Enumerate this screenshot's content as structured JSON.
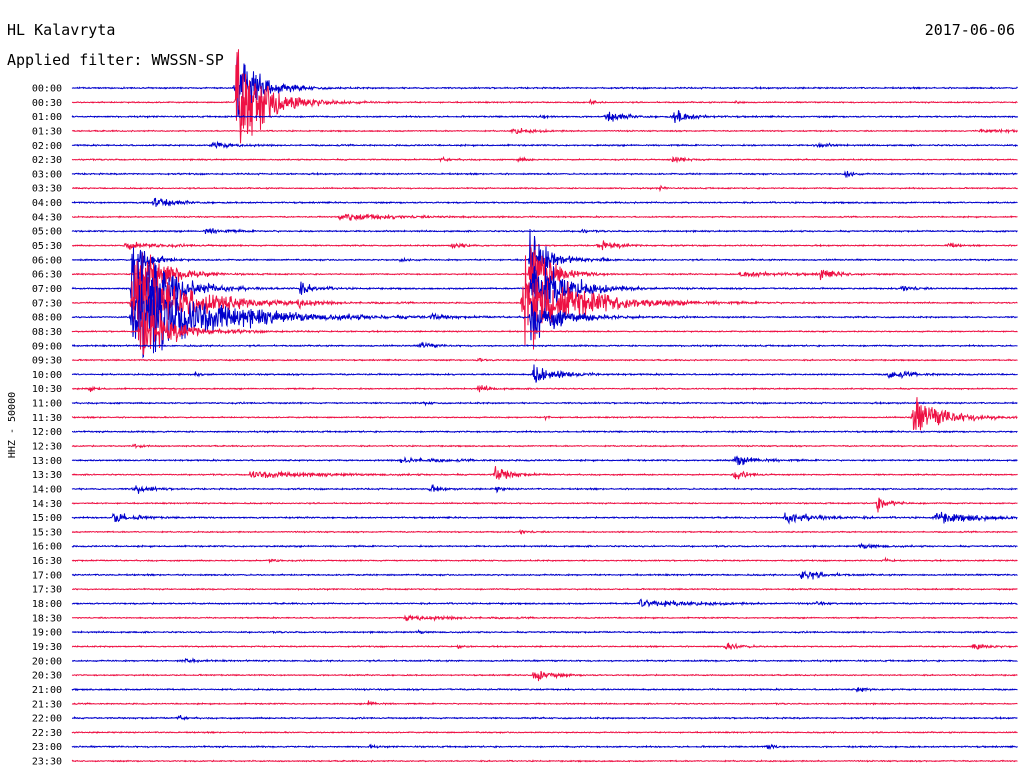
{
  "header": {
    "station": "HL Kalavryta",
    "date": "2017-06-06",
    "filter": "Applied filter: WWSSN-SP"
  },
  "chart_data": {
    "type": "line",
    "title": "",
    "side_label": "HHZ - 50000",
    "colors": {
      "even_trace": "#0000cc",
      "odd_trace": "#ee1144"
    },
    "rows": [
      "00:00",
      "00:30",
      "01:00",
      "01:30",
      "02:00",
      "02:30",
      "03:00",
      "03:30",
      "04:00",
      "04:30",
      "05:00",
      "05:30",
      "06:00",
      "06:30",
      "07:00",
      "07:30",
      "08:00",
      "08:30",
      "09:00",
      "09:30",
      "10:00",
      "10:30",
      "11:00",
      "11:30",
      "12:00",
      "12:30",
      "13:00",
      "13:30",
      "14:00",
      "14:30",
      "15:00",
      "15:30",
      "16:00",
      "16:30",
      "17:00",
      "17:30",
      "18:00",
      "18:30",
      "19:00",
      "19:30",
      "20:00",
      "20:30",
      "21:00",
      "21:30",
      "22:00",
      "22:30",
      "23:00",
      "23:30"
    ]
  }
}
